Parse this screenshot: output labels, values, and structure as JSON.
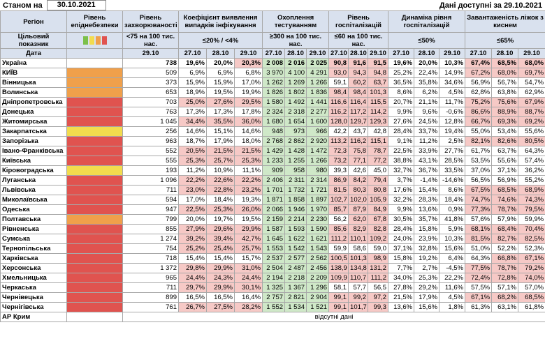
{
  "header": {
    "as_of_label": "Станом на",
    "as_of": "30.10.2021",
    "available_label": "Дані доступні за",
    "available": "29.10.2021"
  },
  "columns": {
    "region": "Регіон",
    "level": "Рівень епіднебезпеки",
    "incidence": "Рівень захворюваності",
    "coef": "Коефіцієнт виявлення випадків інфікування",
    "testing": "Охоплення тестуванням",
    "hosp": "Рівень госпіталізацій",
    "dyn": "Динаміка рівня госпіталізацій",
    "beds": "Завантаженість ліжок з киснем"
  },
  "target": {
    "label": "Цільовий показник",
    "level_colors": [
      "#7cc04a",
      "#f2dc4e",
      "#f0a04b",
      "#e0534f"
    ],
    "incidence": "<75 на 100 тис. нас.",
    "coef": "≤20% / <4%",
    "testing": "≥300 на 100 тис. нас.",
    "hosp": "≤60 на 100 тис. нас.",
    "dyn": "≤50%",
    "beds": "≤65%"
  },
  "dates": {
    "label": "Дата",
    "incidence": "29.10",
    "groups": [
      "27.10",
      "28.10",
      "29.10"
    ]
  },
  "highlight": {
    "coef": {
      "above": 20,
      "color": "#f6c9c6"
    },
    "testing": {
      "atleast": 300,
      "color": "#cfe8c8"
    },
    "hosp": {
      "above": 60,
      "color": "#f6c9c6"
    },
    "dyn": {
      "above": 50,
      "color": "#f6c9c6"
    },
    "beds": {
      "above": 65,
      "color": "#f6c9c6"
    }
  },
  "rows": [
    {
      "region": "Україна",
      "incidence": "738",
      "coef": [
        "19,6%",
        "20,0%",
        "20,3%"
      ],
      "testing": [
        "2 008",
        "2 016",
        "2 025"
      ],
      "hosp": [
        "90,8",
        "91,6",
        "91,5"
      ],
      "dyn": [
        "19,6%",
        "20,0%",
        "10,3%"
      ],
      "beds": [
        "67,4%",
        "68,5%",
        "68,0%"
      ]
    },
    {
      "region": "КИЇВ",
      "level_color": "#f0a04b",
      "incidence": "509",
      "coef": [
        "6,9%",
        "6,9%",
        "6,8%"
      ],
      "testing": [
        "3 970",
        "4 100",
        "4 291"
      ],
      "hosp": [
        "93,0",
        "94,3",
        "94,8"
      ],
      "dyn": [
        "25,2%",
        "22,4%",
        "14,9%"
      ],
      "beds": [
        "67,2%",
        "68,0%",
        "69,7%"
      ]
    },
    {
      "region": "Вінницька",
      "level_color": "#f0a04b",
      "incidence": "373",
      "coef": [
        "15,9%",
        "15,9%",
        "17,0%"
      ],
      "testing": [
        "1 262",
        "1 269",
        "1 266"
      ],
      "hosp": [
        "59,1",
        "60,2",
        "63,7"
      ],
      "dyn": [
        "36,5%",
        "35,8%",
        "34,6%"
      ],
      "beds": [
        "56,9%",
        "56,7%",
        "54,7%"
      ]
    },
    {
      "region": "Волинська",
      "level_color": "#f0a04b",
      "incidence": "653",
      "coef": [
        "18,9%",
        "19,5%",
        "19,9%"
      ],
      "testing": [
        "1 826",
        "1 802",
        "1 836"
      ],
      "hosp": [
        "98,4",
        "98,4",
        "101,3"
      ],
      "dyn": [
        "8,6%",
        "6,2%",
        "4,5%"
      ],
      "beds": [
        "62,8%",
        "63,8%",
        "62,9%"
      ]
    },
    {
      "region": "Дніпропетровська",
      "level_color": "#e0534f",
      "incidence": "703",
      "coef": [
        "25,0%",
        "27,6%",
        "29,5%"
      ],
      "testing": [
        "1 580",
        "1 492",
        "1 441"
      ],
      "hosp": [
        "116,6",
        "116,4",
        "115,5"
      ],
      "dyn": [
        "20,7%",
        "21,1%",
        "11,7%"
      ],
      "beds": [
        "75,2%",
        "75,6%",
        "67,9%"
      ]
    },
    {
      "region": "Донецька",
      "level_color": "#e0534f",
      "incidence": "763",
      "coef": [
        "17,3%",
        "17,3%",
        "17,8%"
      ],
      "testing": [
        "2 324",
        "2 318",
        "2 277"
      ],
      "hosp": [
        "116,2",
        "117,2",
        "114,2"
      ],
      "dyn": [
        "9,9%",
        "9,6%",
        "-0,6%"
      ],
      "beds": [
        "86,6%",
        "88,9%",
        "88,7%"
      ]
    },
    {
      "region": "Житомирська",
      "level_color": "#e0534f",
      "incidence": "1 045",
      "coef": [
        "34,4%",
        "35,5%",
        "36,0%"
      ],
      "testing": [
        "1 680",
        "1 654",
        "1 600"
      ],
      "hosp": [
        "128,0",
        "129,7",
        "129,3"
      ],
      "dyn": [
        "27,6%",
        "24,5%",
        "12,8%"
      ],
      "beds": [
        "66,7%",
        "69,3%",
        "69,2%"
      ]
    },
    {
      "region": "Закарпатська",
      "level_color": "#f2dc4e",
      "incidence": "256",
      "coef": [
        "14,6%",
        "15,1%",
        "14,6%"
      ],
      "testing": [
        "948",
        "973",
        "966"
      ],
      "hosp": [
        "42,2",
        "43,7",
        "42,8"
      ],
      "dyn": [
        "28,4%",
        "33,7%",
        "19,4%"
      ],
      "beds": [
        "55,0%",
        "53,4%",
        "55,6%"
      ]
    },
    {
      "region": "Запорізька",
      "level_color": "#e0534f",
      "incidence": "963",
      "coef": [
        "18,7%",
        "17,9%",
        "18,0%"
      ],
      "testing": [
        "2 768",
        "2 862",
        "2 920"
      ],
      "hosp": [
        "113,2",
        "116,2",
        "115,1"
      ],
      "dyn": [
        "9,1%",
        "11,2%",
        "2,5%"
      ],
      "beds": [
        "82,1%",
        "82,6%",
        "80,5%"
      ]
    },
    {
      "region": "Івано-Франківська",
      "level_color": "#e0534f",
      "incidence": "552",
      "coef": [
        "20,5%",
        "21,5%",
        "21,5%"
      ],
      "testing": [
        "1 429",
        "1 428",
        "1 472"
      ],
      "hosp": [
        "72,3",
        "75,8",
        "78,7"
      ],
      "dyn": [
        "22,5%",
        "33,9%",
        "27,7%"
      ],
      "beds": [
        "61,7%",
        "63,7%",
        "64,3%"
      ]
    },
    {
      "region": "Київська",
      "level_color": "#e0534f",
      "incidence": "555",
      "coef": [
        "25,3%",
        "25,7%",
        "25,3%"
      ],
      "testing": [
        "1 233",
        "1 255",
        "1 266"
      ],
      "hosp": [
        "73,2",
        "77,1",
        "77,2"
      ],
      "dyn": [
        "38,8%",
        "43,1%",
        "28,5%"
      ],
      "beds": [
        "53,5%",
        "55,6%",
        "57,4%"
      ]
    },
    {
      "region": "Кіровоградська",
      "level_color": "#f2dc4e",
      "incidence": "193",
      "coef": [
        "11,2%",
        "10,9%",
        "11,1%"
      ],
      "testing": [
        "909",
        "958",
        "980"
      ],
      "hosp": [
        "39,3",
        "42,6",
        "45,0"
      ],
      "dyn": [
        "32,7%",
        "36,7%",
        "33,5%"
      ],
      "beds": [
        "37,0%",
        "37,1%",
        "36,2%"
      ]
    },
    {
      "region": "Луганська",
      "level_color": "#e0534f",
      "incidence": "1 096",
      "coef": [
        "22,2%",
        "22,6%",
        "22,2%"
      ],
      "testing": [
        "2 406",
        "2 311",
        "2 314"
      ],
      "hosp": [
        "86,9",
        "84,2",
        "79,4"
      ],
      "dyn": [
        "3,7%",
        "-1,4%",
        "-14,6%"
      ],
      "beds": [
        "56,5%",
        "56,9%",
        "55,2%"
      ]
    },
    {
      "region": "Львівська",
      "level_color": "#e0534f",
      "incidence": "711",
      "coef": [
        "23,0%",
        "22,8%",
        "23,2%"
      ],
      "testing": [
        "1 701",
        "1 732",
        "1 721"
      ],
      "hosp": [
        "81,5",
        "80,3",
        "80,8"
      ],
      "dyn": [
        "17,6%",
        "15,4%",
        "8,6%"
      ],
      "beds": [
        "67,5%",
        "68,5%",
        "68,9%"
      ]
    },
    {
      "region": "Миколаївська",
      "level_color": "#e0534f",
      "incidence": "594",
      "coef": [
        "17,0%",
        "18,4%",
        "19,3%"
      ],
      "testing": [
        "1 871",
        "1 858",
        "1 897"
      ],
      "hosp": [
        "102,7",
        "102,0",
        "105,9"
      ],
      "dyn": [
        "32,2%",
        "28,3%",
        "18,4%"
      ],
      "beds": [
        "74,7%",
        "74,6%",
        "74,3%"
      ]
    },
    {
      "region": "Одеська",
      "level_color": "#e0534f",
      "incidence": "947",
      "coef": [
        "22,5%",
        "25,3%",
        "26,0%"
      ],
      "testing": [
        "2 066",
        "1 946",
        "1 970"
      ],
      "hosp": [
        "85,7",
        "87,9",
        "84,9"
      ],
      "dyn": [
        "9,9%",
        "13,6%",
        "0,9%"
      ],
      "beds": [
        "77,3%",
        "78,7%",
        "79,5%"
      ]
    },
    {
      "region": "Полтавська",
      "level_color": "#f0a04b",
      "incidence": "799",
      "coef": [
        "20,0%",
        "19,7%",
        "19,5%"
      ],
      "testing": [
        "2 159",
        "2 214",
        "2 230"
      ],
      "hosp": [
        "56,2",
        "62,0",
        "67,8"
      ],
      "dyn": [
        "30,5%",
        "35,7%",
        "41,8%"
      ],
      "beds": [
        "57,6%",
        "57,9%",
        "59,9%"
      ]
    },
    {
      "region": "Рівненська",
      "level_color": "#e0534f",
      "incidence": "855",
      "coef": [
        "27,9%",
        "29,6%",
        "29,9%"
      ],
      "testing": [
        "1 587",
        "1 593",
        "1 590"
      ],
      "hosp": [
        "85,6",
        "82,9",
        "82,8"
      ],
      "dyn": [
        "28,4%",
        "15,8%",
        "5,9%"
      ],
      "beds": [
        "68,1%",
        "68,4%",
        "70,4%"
      ]
    },
    {
      "region": "Сумська",
      "level_color": "#e0534f",
      "incidence": "1 274",
      "coef": [
        "39,2%",
        "39,4%",
        "42,7%"
      ],
      "testing": [
        "1 645",
        "1 622",
        "1 621"
      ],
      "hosp": [
        "111,2",
        "110,1",
        "109,2"
      ],
      "dyn": [
        "24,0%",
        "23,9%",
        "10,3%"
      ],
      "beds": [
        "81,5%",
        "82,7%",
        "82,5%"
      ]
    },
    {
      "region": "Тернопільська",
      "level_color": "#e0534f",
      "incidence": "754",
      "coef": [
        "25,2%",
        "25,4%",
        "25,7%"
      ],
      "testing": [
        "1 553",
        "1 542",
        "1 543"
      ],
      "hosp": [
        "59,9",
        "58,6",
        "59,0"
      ],
      "dyn": [
        "37,1%",
        "32,8%",
        "15,6%"
      ],
      "beds": [
        "51,0%",
        "52,2%",
        "52,3%"
      ]
    },
    {
      "region": "Харківська",
      "level_color": "#e0534f",
      "incidence": "718",
      "coef": [
        "15,4%",
        "15,4%",
        "15,7%"
      ],
      "testing": [
        "2 537",
        "2 577",
        "2 562"
      ],
      "hosp": [
        "100,5",
        "101,3",
        "98,9"
      ],
      "dyn": [
        "15,8%",
        "19,2%",
        "6,4%"
      ],
      "beds": [
        "64,3%",
        "66,8%",
        "67,1%"
      ]
    },
    {
      "region": "Херсонська",
      "level_color": "#e0534f",
      "incidence": "1 372",
      "coef": [
        "29,8%",
        "29,9%",
        "31,0%"
      ],
      "testing": [
        "2 504",
        "2 487",
        "2 456"
      ],
      "hosp": [
        "138,9",
        "134,8",
        "131,2"
      ],
      "dyn": [
        "7,7%",
        "2,7%",
        "-4,5%"
      ],
      "beds": [
        "77,5%",
        "78,7%",
        "79,2%"
      ]
    },
    {
      "region": "Хмельницька",
      "level_color": "#e0534f",
      "incidence": "965",
      "coef": [
        "24,4%",
        "24,3%",
        "24,4%"
      ],
      "testing": [
        "2 194",
        "2 218",
        "2 209"
      ],
      "hosp": [
        "109,9",
        "110,7",
        "111,2"
      ],
      "dyn": [
        "34,0%",
        "25,3%",
        "22,2%"
      ],
      "beds": [
        "72,4%",
        "72,8%",
        "74,0%"
      ]
    },
    {
      "region": "Черкаська",
      "level_color": "#e0534f",
      "incidence": "711",
      "coef": [
        "29,7%",
        "29,9%",
        "30,1%"
      ],
      "testing": [
        "1 325",
        "1 367",
        "1 296"
      ],
      "hosp": [
        "58,1",
        "57,7",
        "56,5"
      ],
      "dyn": [
        "27,8%",
        "29,2%",
        "11,6%"
      ],
      "beds": [
        "57,5%",
        "57,1%",
        "57,0%"
      ]
    },
    {
      "region": "Чернівецька",
      "level_color": "#e0534f",
      "incidence": "899",
      "coef": [
        "16,5%",
        "16,5%",
        "16,4%"
      ],
      "testing": [
        "2 757",
        "2 821",
        "2 904"
      ],
      "hosp": [
        "99,1",
        "99,2",
        "97,2"
      ],
      "dyn": [
        "21,5%",
        "17,9%",
        "4,5%"
      ],
      "beds": [
        "67,1%",
        "68,2%",
        "68,5%"
      ]
    },
    {
      "region": "Чернігівська",
      "level_color": "#e0534f",
      "incidence": "761",
      "coef": [
        "26,7%",
        "27,5%",
        "28,2%"
      ],
      "testing": [
        "1 552",
        "1 534",
        "1 521"
      ],
      "hosp": [
        "99,1",
        "101,7",
        "99,3"
      ],
      "dyn": [
        "13,6%",
        "15,6%",
        "1,8%"
      ],
      "beds": [
        "61,3%",
        "63,1%",
        "61,8%"
      ]
    },
    {
      "region": "АР Крим",
      "note": "відсутні дані"
    }
  ]
}
